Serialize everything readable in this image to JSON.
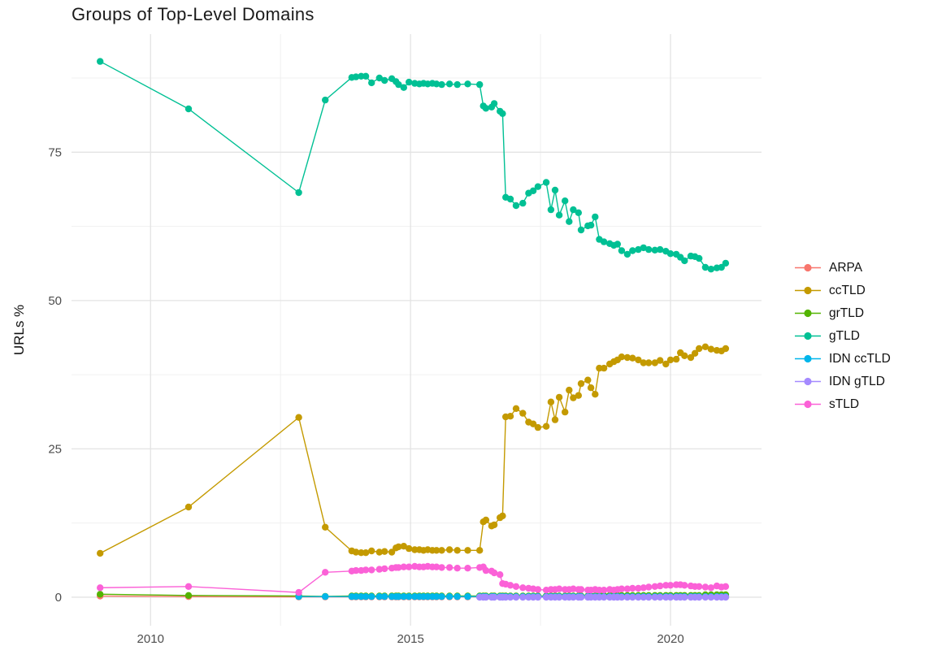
{
  "chart": {
    "title": "Groups of Top-Level Domains",
    "ylabel": "URLs %"
  },
  "chart_data": {
    "type": "line",
    "title": "Groups of Top-Level Domains",
    "xlabel": "",
    "ylabel": "URLs %",
    "grid": true,
    "legend_position": "right",
    "x_ticks": [
      2010,
      2015,
      2020
    ],
    "x_minor_ticks": [
      2012.5,
      2017.5
    ],
    "y_ticks": [
      0,
      25,
      50,
      75
    ],
    "y_minor_ticks": [
      12.5,
      37.5,
      62.5,
      87.5
    ],
    "x_range": [
      2008.48,
      2021.75
    ],
    "y_range": [
      -4.8,
      94.9
    ],
    "x": [
      2009.03,
      2010.73,
      2012.85,
      2013.36,
      2013.87,
      2013.95,
      2014.05,
      2014.14,
      2014.25,
      2014.4,
      2014.5,
      2014.64,
      2014.72,
      2014.77,
      2014.87,
      2014.97,
      2015.08,
      2015.17,
      2015.25,
      2015.33,
      2015.42,
      2015.5,
      2015.6,
      2015.75,
      2015.9,
      2016.1,
      2016.33,
      2016.4,
      2016.45,
      2016.56,
      2016.61,
      2016.72,
      2016.77,
      2016.83,
      2016.92,
      2017.03,
      2017.16,
      2017.27,
      2017.36,
      2017.45,
      2017.61,
      2017.7,
      2017.78,
      2017.86,
      2017.97,
      2018.05,
      2018.13,
      2018.23,
      2018.28,
      2018.41,
      2018.47,
      2018.55,
      2018.63,
      2018.72,
      2018.83,
      2018.91,
      2018.98,
      2019.06,
      2019.17,
      2019.27,
      2019.38,
      2019.48,
      2019.58,
      2019.7,
      2019.8,
      2019.91,
      2020.0,
      2020.11,
      2020.19,
      2020.27,
      2020.39,
      2020.47,
      2020.55,
      2020.67,
      2020.78,
      2020.89,
      2020.98,
      2021.06
    ],
    "series": [
      {
        "name": "ARPA",
        "color": "#F8766D",
        "values": [
          0.2,
          0.1,
          0.05,
          0.05,
          0.05,
          0.05,
          0.05,
          0.05,
          0.05,
          0.05,
          0.05,
          0.05,
          0.05,
          0.05,
          0.05,
          0.05,
          0.05,
          0.05,
          0.05,
          0.05,
          0.05,
          0.05,
          0.05,
          0.05,
          0.05,
          0.05,
          0.05,
          0.05,
          0.05,
          0.05,
          0.05,
          0.05,
          0.05,
          0.05,
          0.05,
          0.05,
          0.05,
          0.05,
          0.05,
          0.05,
          0.05,
          0.05,
          0.05,
          0.05,
          0.05,
          0.05,
          0.05,
          0.05,
          0.05,
          0.05,
          0.05,
          0.05,
          0.05,
          0.05,
          0.05,
          0.05,
          0.05,
          0.05,
          0.05,
          0.05,
          0.05,
          0.05,
          0.05,
          0.05,
          0.05,
          0.05,
          0.05,
          0.05,
          0.05,
          0.05,
          0.05,
          0.05,
          0.05,
          0.05,
          0.05,
          0.05,
          0.05,
          0.05
        ]
      },
      {
        "name": "ccTLD",
        "color": "#C49A00",
        "values": [
          7.4,
          15.2,
          30.3,
          11.8,
          7.8,
          7.6,
          7.5,
          7.5,
          7.8,
          7.6,
          7.7,
          7.6,
          8.3,
          8.5,
          8.6,
          8.2,
          8.0,
          8.0,
          7.9,
          8.0,
          7.9,
          7.9,
          7.9,
          8.0,
          7.9,
          7.9,
          7.9,
          12.7,
          13.0,
          12.0,
          12.2,
          13.4,
          13.7,
          30.4,
          30.5,
          31.8,
          31.0,
          29.5,
          29.2,
          28.6,
          28.8,
          32.9,
          29.9,
          33.7,
          31.2,
          34.9,
          33.6,
          34.0,
          36.0,
          36.6,
          35.3,
          34.2,
          38.6,
          38.6,
          39.3,
          39.7,
          40.0,
          40.5,
          40.4,
          40.3,
          40.0,
          39.5,
          39.5,
          39.5,
          39.9,
          39.3,
          40.0,
          40.1,
          41.2,
          40.7,
          40.4,
          41.1,
          41.9,
          42.2,
          41.8,
          41.6,
          41.5,
          41.9
        ]
      },
      {
        "name": "grTLD",
        "color": "#53B400",
        "values": [
          0.5,
          0.3,
          0.2,
          0.15,
          0.2,
          0.2,
          0.2,
          0.2,
          0.2,
          0.2,
          0.2,
          0.2,
          0.2,
          0.2,
          0.2,
          0.2,
          0.2,
          0.2,
          0.2,
          0.2,
          0.2,
          0.2,
          0.2,
          0.2,
          0.2,
          0.2,
          0.2,
          0.2,
          0.2,
          0.2,
          0.2,
          0.2,
          0.2,
          0.2,
          0.2,
          0.2,
          0.2,
          0.2,
          0.2,
          0.2,
          0.2,
          0.2,
          0.2,
          0.2,
          0.2,
          0.2,
          0.2,
          0.2,
          0.2,
          0.2,
          0.2,
          0.2,
          0.3,
          0.3,
          0.3,
          0.3,
          0.3,
          0.3,
          0.3,
          0.3,
          0.3,
          0.3,
          0.3,
          0.3,
          0.3,
          0.3,
          0.3,
          0.3,
          0.3,
          0.3,
          0.3,
          0.3,
          0.3,
          0.4,
          0.4,
          0.4,
          0.4,
          0.4
        ]
      },
      {
        "name": "gTLD",
        "color": "#00C094",
        "values": [
          90.3,
          82.3,
          68.2,
          83.8,
          87.6,
          87.7,
          87.8,
          87.8,
          86.7,
          87.5,
          87.1,
          87.4,
          86.9,
          86.4,
          85.9,
          86.8,
          86.6,
          86.5,
          86.6,
          86.5,
          86.6,
          86.5,
          86.4,
          86.5,
          86.4,
          86.5,
          86.4,
          82.8,
          82.4,
          82.6,
          83.2,
          81.9,
          81.5,
          67.4,
          67.1,
          66.0,
          66.4,
          68.1,
          68.5,
          69.2,
          69.9,
          65.3,
          68.6,
          64.4,
          66.8,
          63.3,
          65.3,
          64.8,
          61.9,
          62.6,
          62.7,
          64.1,
          60.3,
          59.9,
          59.6,
          59.3,
          59.5,
          58.4,
          57.8,
          58.4,
          58.6,
          58.9,
          58.6,
          58.5,
          58.6,
          58.3,
          57.9,
          57.8,
          57.3,
          56.7,
          57.5,
          57.4,
          57.1,
          55.6,
          55.3,
          55.5,
          55.6,
          56.3
        ]
      },
      {
        "name": "IDN ccTLD",
        "color": "#00B6EB",
        "values": [
          null,
          null,
          0.1,
          0.1,
          0.1,
          0.1,
          0.1,
          0.1,
          0.1,
          0.1,
          0.1,
          0.1,
          0.1,
          0.1,
          0.1,
          0.1,
          0.1,
          0.1,
          0.1,
          0.1,
          0.1,
          0.1,
          0.1,
          0.1,
          0.1,
          0.1,
          0.1,
          0.1,
          0.1,
          0.1,
          0.1,
          0.1,
          0.1,
          0.1,
          0.1,
          0.1,
          0.1,
          0.1,
          0.1,
          0.1,
          0.1,
          0.1,
          0.1,
          0.1,
          0.1,
          0.1,
          0.1,
          0.1,
          0.1,
          0.1,
          0.1,
          0.1,
          0.1,
          0.1,
          0.1,
          0.1,
          0.1,
          0.1,
          0.1,
          0.1,
          0.1,
          0.1,
          0.1,
          0.1,
          0.1,
          0.1,
          0.1,
          0.1,
          0.1,
          0.1,
          0.1,
          0.1,
          0.1,
          0.1,
          0.1,
          0.1,
          0.1,
          0.1
        ]
      },
      {
        "name": "IDN gTLD",
        "color": "#A58AFF",
        "values": [
          null,
          null,
          null,
          null,
          null,
          null,
          null,
          null,
          null,
          null,
          null,
          null,
          null,
          null,
          null,
          null,
          null,
          null,
          null,
          null,
          null,
          null,
          null,
          null,
          null,
          null,
          0,
          0,
          0,
          0,
          0,
          0,
          0,
          0,
          0,
          0,
          0,
          0,
          0,
          0,
          0,
          0,
          0,
          0,
          0,
          0,
          0,
          0,
          0,
          0,
          0,
          0,
          0,
          0,
          0,
          0,
          0,
          0,
          0,
          0,
          0,
          0,
          0,
          0,
          0,
          0,
          0,
          0,
          0,
          0,
          0,
          0,
          0,
          0,
          0,
          0,
          0,
          0
        ]
      },
      {
        "name": "sTLD",
        "color": "#FB61D7",
        "values": [
          1.6,
          1.8,
          0.8,
          4.2,
          4.4,
          4.5,
          4.5,
          4.6,
          4.6,
          4.7,
          4.8,
          4.9,
          5.0,
          5.0,
          5.1,
          5.1,
          5.2,
          5.1,
          5.1,
          5.2,
          5.1,
          5.1,
          5.0,
          5.0,
          4.9,
          4.9,
          5.0,
          5.1,
          4.5,
          4.4,
          4.1,
          3.8,
          2.3,
          2.2,
          2.0,
          1.8,
          1.6,
          1.5,
          1.4,
          1.3,
          1.2,
          1.3,
          1.3,
          1.4,
          1.3,
          1.3,
          1.4,
          1.3,
          1.3,
          1.2,
          1.2,
          1.3,
          1.2,
          1.2,
          1.3,
          1.2,
          1.3,
          1.4,
          1.4,
          1.5,
          1.5,
          1.6,
          1.7,
          1.8,
          1.9,
          2.0,
          2.0,
          2.1,
          2.1,
          2.0,
          1.9,
          1.8,
          1.8,
          1.7,
          1.6,
          1.9,
          1.7,
          1.8
        ]
      }
    ]
  }
}
